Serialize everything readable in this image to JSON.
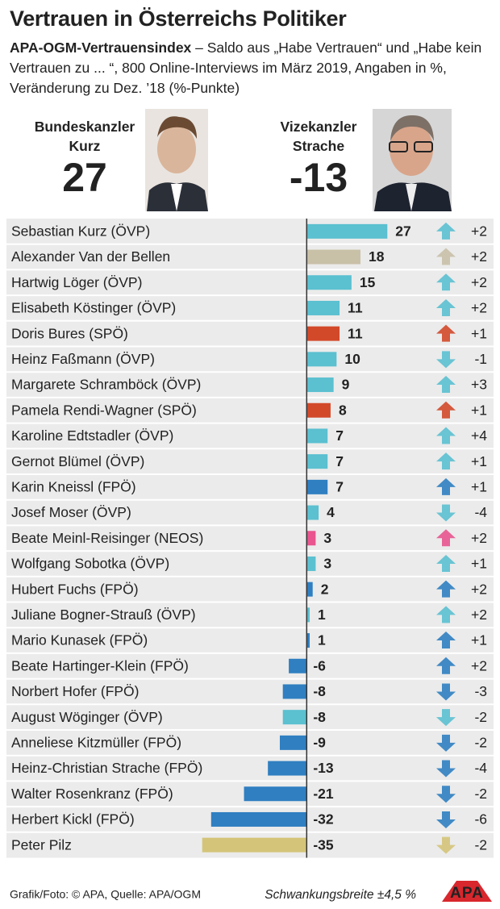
{
  "chart_data": {
    "type": "bar",
    "title": "Vertrauen in Österreichs Politiker",
    "subtitle_lead": "APA-OGM-Vertrauensindex",
    "subtitle": "– Saldo aus „Habe Vertrauen“ und „Habe kein Vertrauen zu ... “, 800 Online-Interviews im März 2019, Angaben in %, Veränderung zu Dez. ’18 (%-Punkte)",
    "highlights": [
      {
        "label": "Bundeskanzler Kurz",
        "value": 27,
        "color": "#5bc0d0"
      },
      {
        "label": "Vizekanzler Strache",
        "value": -13,
        "color": "#2f7fc1"
      }
    ],
    "categories": [
      "Sebastian Kurz (ÖVP)",
      "Alexander Van der Bellen",
      "Hartwig Löger (ÖVP)",
      "Elisabeth Köstinger (ÖVP)",
      "Doris Bures (SPÖ)",
      "Heinz Faßmann (ÖVP)",
      "Margarete Schramböck (ÖVP)",
      "Pamela Rendi-Wagner (SPÖ)",
      "Karoline Edtstadler (ÖVP)",
      "Gernot Blümel (ÖVP)",
      "Karin Kneissl (FPÖ)",
      "Josef Moser (ÖVP)",
      "Beate Meinl-Reisinger (NEOS)",
      "Wolfgang Sobotka (ÖVP)",
      "Hubert Fuchs (FPÖ)",
      "Juliane Bogner-Strauß (ÖVP)",
      "Mario Kunasek (FPÖ)",
      "Beate Hartinger-Klein (FPÖ)",
      "Norbert Hofer (FPÖ)",
      "August Wöginger (ÖVP)",
      "Anneliese Kitzmüller (FPÖ)",
      "Heinz-Christian Strache (FPÖ)",
      "Walter Rosenkranz (FPÖ)",
      "Herbert Kickl (FPÖ)",
      "Peter Pilz"
    ],
    "values": [
      27,
      18,
      15,
      11,
      11,
      10,
      9,
      8,
      7,
      7,
      7,
      4,
      3,
      3,
      2,
      1,
      1,
      -6,
      -8,
      -8,
      -9,
      -13,
      -21,
      -32,
      -35
    ],
    "colors": [
      "#5bc0d0",
      "#c9c0a8",
      "#5bc0d0",
      "#5bc0d0",
      "#d2492a",
      "#5bc0d0",
      "#5bc0d0",
      "#d2492a",
      "#5bc0d0",
      "#5bc0d0",
      "#2f7fc1",
      "#5bc0d0",
      "#e8558f",
      "#5bc0d0",
      "#2f7fc1",
      "#5bc0d0",
      "#2f7fc1",
      "#2f7fc1",
      "#2f7fc1",
      "#5bc0d0",
      "#2f7fc1",
      "#2f7fc1",
      "#2f7fc1",
      "#2f7fc1",
      "#d4c479"
    ],
    "changes": [
      2,
      2,
      2,
      2,
      1,
      -1,
      3,
      1,
      4,
      1,
      1,
      -4,
      2,
      1,
      2,
      2,
      1,
      2,
      -3,
      -2,
      -2,
      -4,
      -2,
      -6,
      -2
    ],
    "change_labels": [
      "+2",
      "+2",
      "+2",
      "+2",
      "+1",
      "-1",
      "+3",
      "+1",
      "+4",
      "+1",
      "+1",
      "-4",
      "+2",
      "+1",
      "+2",
      "+2",
      "+1",
      "+2",
      "-3",
      "-2",
      "-2",
      "-4",
      "-2",
      "-6",
      "-2"
    ],
    "xlim": [
      -36,
      28
    ],
    "source": "Grafik/Foto: © APA, Quelle: APA/OGM",
    "note": "Schwankungsbreite ±4,5 %",
    "logo": "APA"
  }
}
